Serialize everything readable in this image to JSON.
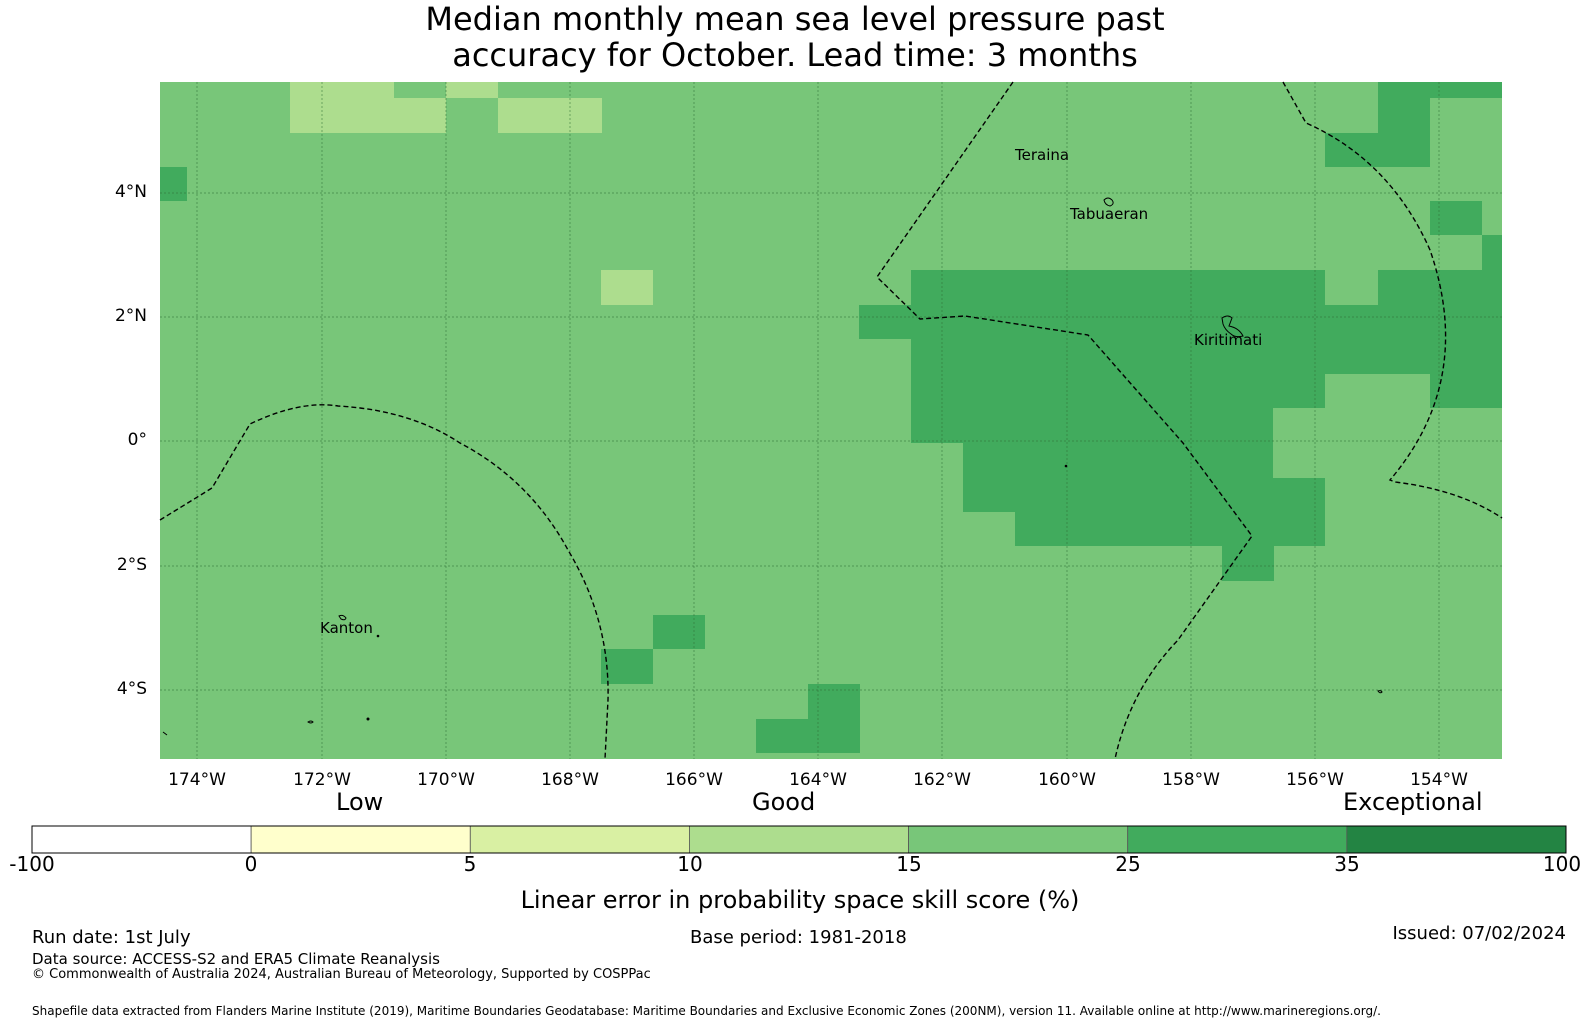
{
  "title": {
    "line1": "Median monthly mean sea level pressure past",
    "line2": "accuracy for October. Lead time: 3 months"
  },
  "map": {
    "lon_range": [
      -174.6,
      -153.0
    ],
    "lat_range": [
      -5.1,
      5.8
    ],
    "x_ticks": [
      "174°W",
      "172°W",
      "170°W",
      "168°W",
      "166°W",
      "164°W",
      "162°W",
      "160°W",
      "158°W",
      "156°W",
      "154°W"
    ],
    "y_ticks": [
      "4°N",
      "2°N",
      "0°",
      "2°S",
      "4°S"
    ],
    "base_color": "#78c679",
    "places": [
      "Teraina",
      "Tabuaeran",
      "Kiritimati",
      "Kanton"
    ]
  },
  "colorbar": {
    "category_labels": [
      "Low",
      "Good",
      "Exceptional"
    ],
    "tick_labels": [
      "-100",
      "0",
      "5",
      "10",
      "15",
      "25",
      "35",
      "100"
    ],
    "colors": [
      "#ffffff",
      "#ffffcc",
      "#d9f0a3",
      "#addd8e",
      "#78c679",
      "#41ab5d",
      "#238443"
    ],
    "label": "Linear error in probability space skill score (%)"
  },
  "footer": {
    "run_date": "Run date: 1st July",
    "base_period": "Base period: 1981-2018",
    "issued": "Issued: 07/02/2024",
    "data_source": "Data source: ACCESS-S2 and ERA5 Climate Reanalysis",
    "copyright": "© Commonwealth of Australia 2024, Australian Bureau of Meteorology, Supported by COSPPac",
    "shapefile": "Shapefile data extracted from Flanders Marine Institute (2019), Maritime Boundaries Geodatabase: Maritime Boundaries and Exclusive Economic Zones (200NM), version 11. Available online at http://www.marineregions.org/."
  }
}
